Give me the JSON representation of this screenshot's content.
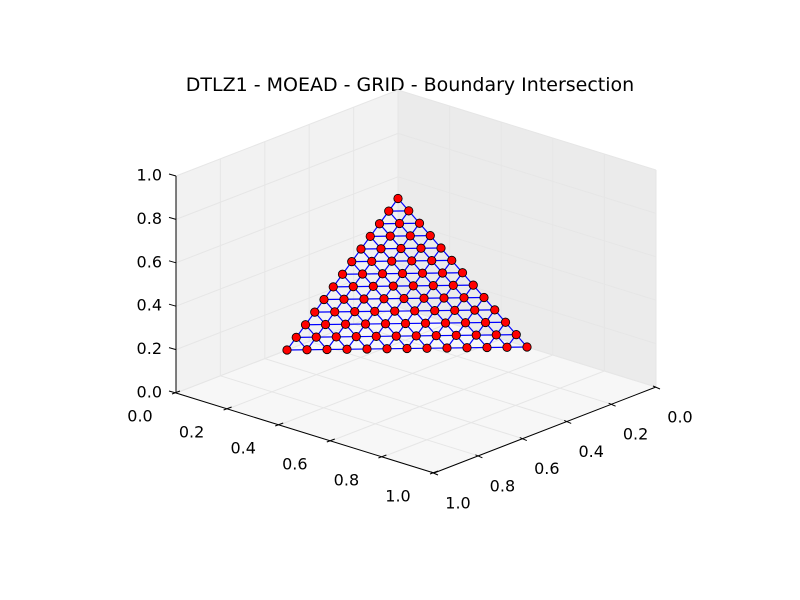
{
  "chart_data": {
    "type": "scatter",
    "projection": "3d",
    "title": "DTLZ1 - MOEAD - GRID - Boundary Intersection",
    "xlabel": "",
    "ylabel": "",
    "zlabel": "",
    "xlim": [
      0.0,
      1.0
    ],
    "ylim": [
      0.0,
      1.0
    ],
    "zlim": [
      0.0,
      1.0
    ],
    "x_ticks": [
      "0.0",
      "0.2",
      "0.4",
      "0.6",
      "0.8",
      "1.0"
    ],
    "y_ticks": [
      "0.0",
      "0.2",
      "0.4",
      "0.6",
      "0.8",
      "1.0"
    ],
    "z_ticks": [
      "0.0",
      "0.2",
      "0.4",
      "0.6",
      "0.8",
      "1.0"
    ],
    "grid": true,
    "front": {
      "shape": "simplex",
      "constraint": "x + y + z = 0.5",
      "divisions": 12,
      "point_spacing": 0.041667,
      "points_count": 91
    },
    "marker_color": "#ff0000",
    "marker_edge_color": "#000000",
    "line_color": "#0000ff",
    "pane_color": "#f2f2f2"
  }
}
